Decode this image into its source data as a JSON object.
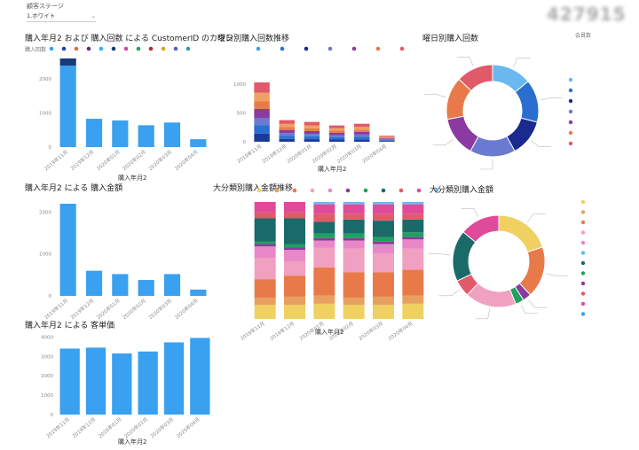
{
  "slicer": {
    "label": "顧客ステージ",
    "value": "1.ホワイト"
  },
  "kpi": {
    "value": "427915"
  },
  "colors": {
    "bar": "#3aa0f0"
  },
  "chart_data": [
    {
      "id": "count-by-month",
      "type": "bar",
      "title": "購入年月2 および 購入回数 による CustomerID のカウン",
      "legend_title": "購入回数",
      "xlabel": "購入年月2",
      "categories": [
        "2019年11月",
        "2019年12月",
        "2020年01月",
        "2020年02月",
        "2020年03月",
        "2020年04月"
      ],
      "values": [
        2400,
        830,
        780,
        640,
        720,
        230
      ],
      "ylim": [
        0,
        2600
      ],
      "yticks": [
        0,
        1000,
        2000
      ],
      "legend_colors": [
        "#3aa0f0",
        "#2a3fa0",
        "#e06a4a",
        "#6b2a8a",
        "#3ab0e0",
        "#1a3a7a",
        "#d04a9a",
        "#2aa060",
        "#b03030",
        "#e0a030",
        "#5a60b0",
        "#30a0a0"
      ]
    },
    {
      "id": "weekday-count-trend",
      "type": "bar",
      "stacked": true,
      "title": "曜日別購入回数推移",
      "xlabel": "購入年月2",
      "categories": [
        "2019年11月",
        "2019年12月",
        "2020年01月",
        "2020年02月",
        "2020年03月",
        "2020年04月"
      ],
      "series_colors": [
        "#1a3a9a",
        "#2a6fd0",
        "#6a7ad0",
        "#8a3aa0",
        "#e87a4a",
        "#f0a060",
        "#e05a6a"
      ],
      "series_values": [
        [
          140,
          50,
          45,
          38,
          42,
          14
        ],
        [
          150,
          55,
          50,
          40,
          45,
          15
        ],
        [
          120,
          45,
          42,
          35,
          38,
          12
        ],
        [
          160,
          55,
          50,
          42,
          46,
          16
        ],
        [
          130,
          50,
          45,
          38,
          40,
          14
        ],
        [
          150,
          55,
          52,
          42,
          46,
          15
        ],
        [
          180,
          65,
          60,
          48,
          55,
          18
        ]
      ],
      "ylim": [
        0,
        1200
      ],
      "yticks": [
        0,
        500,
        1000
      ]
    },
    {
      "id": "weekday-count-donut",
      "type": "pie",
      "donut": true,
      "title": "曜日別購入回数",
      "legend_title": "会員数",
      "values": [
        14,
        15,
        13,
        16,
        14,
        15,
        13
      ],
      "colors": [
        "#6ab8f0",
        "#2a6fd0",
        "#1a2a90",
        "#6a7ad0",
        "#8a3aa0",
        "#e87a4a",
        "#e05a6a"
      ]
    },
    {
      "id": "amount-by-month",
      "type": "bar",
      "title": "購入年月2 による 購入金額",
      "categories": [
        "2019年11月",
        "2019年12月",
        "2020年01月",
        "2020年02月",
        "2020年03月",
        "2020年04月"
      ],
      "values": [
        2200,
        600,
        520,
        380,
        520,
        150
      ],
      "ylim": [
        0,
        2200
      ],
      "yticks": [
        0,
        1000,
        2000
      ]
    },
    {
      "id": "category-amount-trend",
      "type": "bar",
      "stacked": true,
      "percent": true,
      "title": "大分類別購入金額推移",
      "xlabel": "購入年月2",
      "categories": [
        "2019年11月",
        "2019年12月",
        "2020年01月",
        "2020年02月",
        "2020年03月",
        "2020年04月"
      ],
      "series_colors": [
        "#f0d060",
        "#e8a060",
        "#e87a4a",
        "#f0a0c0",
        "#e888c8",
        "#8a3aa0",
        "#20a060",
        "#1a6a6a",
        "#e05a6a",
        "#e04a9a",
        "#6ab8f0"
      ],
      "series_values": [
        [
          12,
          12,
          13,
          12,
          12,
          13
        ],
        [
          6,
          7,
          7,
          6,
          7,
          7
        ],
        [
          16,
          18,
          24,
          22,
          21,
          22
        ],
        [
          18,
          12,
          17,
          20,
          16,
          18
        ],
        [
          10,
          10,
          6,
          7,
          8,
          8
        ],
        [
          2,
          2,
          2,
          2,
          2,
          2
        ],
        [
          2,
          3,
          4,
          4,
          4,
          4
        ],
        [
          20,
          22,
          10,
          12,
          14,
          11
        ],
        [
          5,
          5,
          7,
          5,
          6,
          5
        ],
        [
          9,
          9,
          8,
          8,
          8,
          8
        ],
        [
          0,
          0,
          2,
          2,
          2,
          2
        ]
      ],
      "ylim": [
        0,
        100
      ]
    },
    {
      "id": "category-amount-donut",
      "type": "pie",
      "donut": true,
      "title": "大分類別購入金額",
      "values": [
        20,
        18,
        3,
        3,
        18,
        6,
        18,
        14
      ],
      "colors": [
        "#f0d060",
        "#e87a4a",
        "#8a3aa0",
        "#20a060",
        "#f0a0c0",
        "#e05a6a",
        "#1a6a6a",
        "#e04a9a"
      ],
      "legend_colors": [
        "#f0d060",
        "#e8a060",
        "#e87a4a",
        "#f0a0c0",
        "#e888c8",
        "#6ab8f0",
        "#1a6a6a",
        "#20a060",
        "#8a3aa0",
        "#e05a6a",
        "#e04a9a",
        "#3aa0f0"
      ]
    },
    {
      "id": "unit-price-by-month",
      "type": "bar",
      "title": "購入年月2 による 客単価",
      "xlabel": "購入年月2",
      "categories": [
        "2019年11月",
        "2019年12月",
        "2020年01月",
        "2020年02月",
        "2020年03月",
        "2020年04月"
      ],
      "values": [
        3400,
        3450,
        3150,
        3250,
        3720,
        3950
      ],
      "ylim": [
        0,
        4200
      ],
      "yticks": [
        0,
        1000,
        2000,
        3000,
        4000
      ]
    }
  ]
}
